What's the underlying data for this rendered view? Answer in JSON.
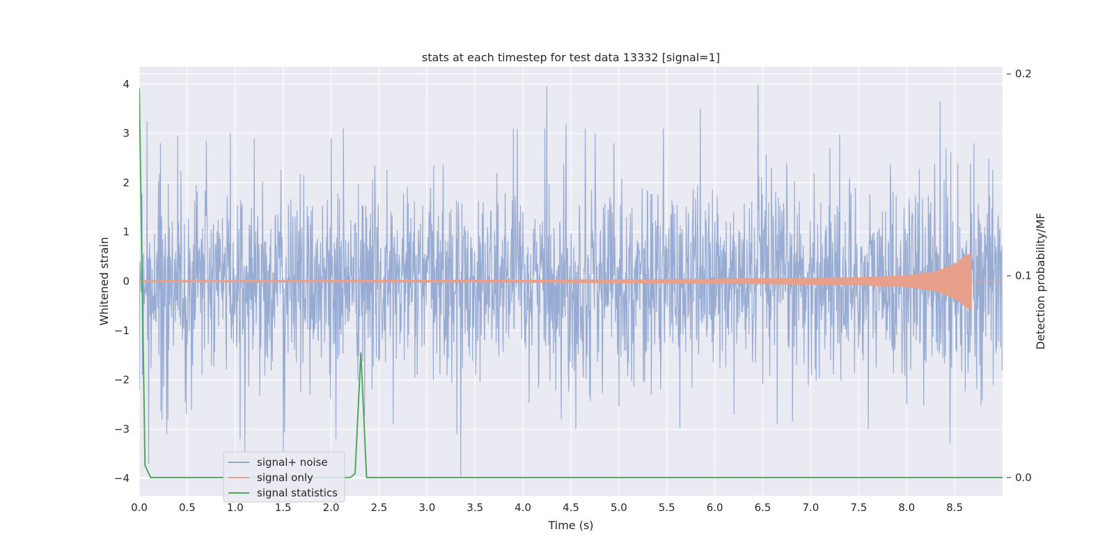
{
  "chart_data": {
    "type": "line",
    "title": "stats at each timestep for test data 13332 [signal=1]",
    "xlabel": "Time (s)",
    "ylabel": "Whitened strain",
    "y2label": "Detection probability/MF",
    "xlim": [
      0.0,
      9.0
    ],
    "ylim": [
      -4.35,
      4.35
    ],
    "y2lim": [
      -0.009,
      0.2035
    ],
    "xticks": [
      0.0,
      0.5,
      1.0,
      1.5,
      2.0,
      2.5,
      3.0,
      3.5,
      4.0,
      4.5,
      5.0,
      5.5,
      6.0,
      6.5,
      7.0,
      7.5,
      8.0,
      8.5
    ],
    "xtick_labels": [
      "0.0",
      "0.5",
      "1.0",
      "1.5",
      "2.0",
      "2.5",
      "3.0",
      "3.5",
      "4.0",
      "4.5",
      "5.0",
      "5.5",
      "6.0",
      "6.5",
      "7.0",
      "7.5",
      "8.0",
      "8.5"
    ],
    "yticks": [
      -4,
      -3,
      -2,
      -1,
      0,
      1,
      2,
      3,
      4
    ],
    "ytick_labels": [
      "−4",
      "−3",
      "−2",
      "−1",
      "0",
      "1",
      "2",
      "3",
      "4"
    ],
    "y2ticks": [
      0.0,
      0.1,
      0.2
    ],
    "y2tick_labels": [
      "0.0",
      "0.1",
      "0.2"
    ],
    "grid": true,
    "legend_position": "lower-left",
    "series": [
      {
        "name": "signal+ noise",
        "color": "#92a8d1",
        "axis": "left",
        "kind": "noise",
        "duration": 9.0,
        "envelope_typical": 1.3,
        "peaks": [
          {
            "t": 0.0,
            "v": -2.2
          },
          {
            "t": 0.08,
            "v": 3.25
          },
          {
            "t": 0.1,
            "v": -3.7
          },
          {
            "t": 0.22,
            "v": 2.8
          },
          {
            "t": 0.3,
            "v": -2.8
          },
          {
            "t": 0.4,
            "v": 2.95
          },
          {
            "t": 0.48,
            "v": -2.45
          },
          {
            "t": 0.7,
            "v": 2.85
          },
          {
            "t": 0.95,
            "v": 3.0
          },
          {
            "t": 1.05,
            "v": -3.2
          },
          {
            "t": 1.1,
            "v": -3.45
          },
          {
            "t": 1.2,
            "v": 2.9
          },
          {
            "t": 1.5,
            "v": -3.45
          },
          {
            "t": 2.0,
            "v": 2.9
          },
          {
            "t": 2.05,
            "v": -3.2
          },
          {
            "t": 2.35,
            "v": -2.75
          },
          {
            "t": 2.65,
            "v": 2.6
          },
          {
            "t": 2.65,
            "v": -2.9
          },
          {
            "t": 3.35,
            "v": -3.95
          },
          {
            "t": 3.9,
            "v": 3.1
          },
          {
            "t": 4.25,
            "v": 3.95
          },
          {
            "t": 4.4,
            "v": -2.8
          },
          {
            "t": 4.45,
            "v": 3.2
          },
          {
            "t": 4.55,
            "v": -3.0
          },
          {
            "t": 4.65,
            "v": 3.1
          },
          {
            "t": 4.75,
            "v": 3.0
          },
          {
            "t": 4.95,
            "v": 2.8
          },
          {
            "t": 5.85,
            "v": 3.5
          },
          {
            "t": 6.2,
            "v": -2.7
          },
          {
            "t": 6.45,
            "v": 4.0
          },
          {
            "t": 6.65,
            "v": -2.9
          },
          {
            "t": 7.2,
            "v": 2.7
          },
          {
            "t": 7.6,
            "v": -3.0
          },
          {
            "t": 8.0,
            "v": -2.5
          },
          {
            "t": 8.35,
            "v": 3.65
          },
          {
            "t": 8.45,
            "v": -3.3
          },
          {
            "t": 8.7,
            "v": 2.8
          },
          {
            "t": 8.9,
            "v": -2.1
          }
        ]
      },
      {
        "name": "signal only",
        "color": "#e8a08a",
        "axis": "left",
        "kind": "chirp",
        "amp_points": [
          {
            "t": 0.0,
            "a": 0.02
          },
          {
            "t": 4.0,
            "a": 0.03
          },
          {
            "t": 6.0,
            "a": 0.05
          },
          {
            "t": 7.5,
            "a": 0.08
          },
          {
            "t": 8.0,
            "a": 0.12
          },
          {
            "t": 8.3,
            "a": 0.2
          },
          {
            "t": 8.5,
            "a": 0.35
          },
          {
            "t": 8.6,
            "a": 0.5
          },
          {
            "t": 8.67,
            "a": 0.58
          },
          {
            "t": 8.68,
            "a": 0.0
          }
        ],
        "merger_time": 8.67
      },
      {
        "name": "signal statistics",
        "color": "#4fa75e",
        "axis": "right",
        "kind": "line",
        "x": [
          0.0,
          0.06,
          0.12,
          2.2,
          2.25,
          2.31,
          2.37,
          2.42,
          9.0
        ],
        "y": [
          0.193,
          0.006,
          0.0,
          0.0,
          0.002,
          0.062,
          0.0,
          0.0,
          0.0
        ]
      }
    ]
  }
}
